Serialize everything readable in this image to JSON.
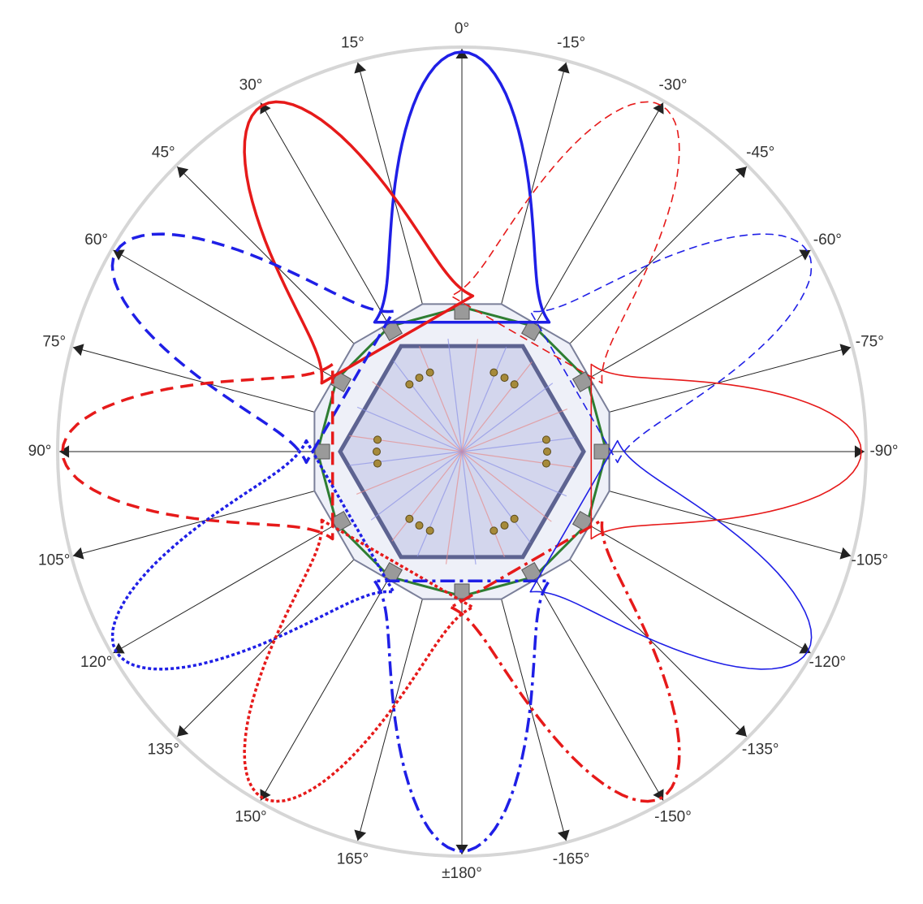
{
  "chart_data": {
    "type": "polar-line",
    "title": "",
    "angle_tick_labels": [
      "0°",
      "15°",
      "30°",
      "45°",
      "60°",
      "75°",
      "90°",
      "105°",
      "120°",
      "135°",
      "150°",
      "165°",
      "±180°",
      "-165°",
      "-150°",
      "-135°",
      "-120°",
      "-105°",
      "-90°",
      "-75°",
      "-60°",
      "-45°",
      "-30°",
      "-15°"
    ],
    "radial_range": [
      0,
      1
    ],
    "grid": true,
    "legend": "none",
    "direction": "counterclockwise",
    "zero_location": "top",
    "lobes": [
      {
        "peak_deg": 0,
        "color": "#1f1fe6",
        "style": "solid",
        "width": 3.5
      },
      {
        "peak_deg": 30,
        "color": "#e61a1a",
        "style": "solid",
        "width": 3.5
      },
      {
        "peak_deg": 60,
        "color": "#1f1fe6",
        "style": "dashed",
        "width": 3.5
      },
      {
        "peak_deg": 90,
        "color": "#e61a1a",
        "style": "dashed",
        "width": 3.5
      },
      {
        "peak_deg": 120,
        "color": "#1f1fe6",
        "style": "dotted",
        "width": 3.5
      },
      {
        "peak_deg": 150,
        "color": "#e61a1a",
        "style": "dotted",
        "width": 3.5
      },
      {
        "peak_deg": 180,
        "color": "#1f1fe6",
        "style": "dashdot",
        "width": 3.5
      },
      {
        "peak_deg": -150,
        "color": "#e61a1a",
        "style": "dashdot",
        "width": 3.5
      },
      {
        "peak_deg": -120,
        "color": "#1f1fe6",
        "style": "solid",
        "width": 1.6
      },
      {
        "peak_deg": -90,
        "color": "#e61a1a",
        "style": "solid",
        "width": 1.6
      },
      {
        "peak_deg": -60,
        "color": "#1f1fe6",
        "style": "dashed",
        "width": 1.6
      },
      {
        "peak_deg": -30,
        "color": "#e61a1a",
        "style": "dashed",
        "width": 1.6
      }
    ],
    "lobe_shape": {
      "peak_radius": 1.0,
      "half_width_deg": 16,
      "base_radius": 0.38
    },
    "colors": {
      "outer_ring": "#d6d6d6",
      "spoke": "#222222",
      "center_fill": "#c9cdea",
      "frame": "#2e7d32"
    }
  }
}
